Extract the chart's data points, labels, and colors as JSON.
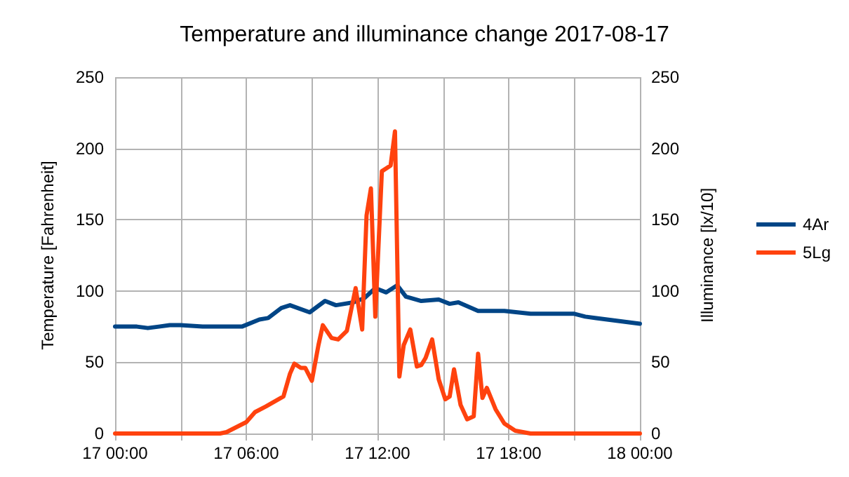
{
  "chart_data": {
    "type": "line",
    "title": "Temperature and illuminance change 2017-08-17",
    "ylabel": "Temperature [Fahrenheit]",
    "y2label": "Illuminance [lx/10]",
    "xlim": [
      "2017-08-17T00:00",
      "2017-08-18T00:00"
    ],
    "xticks": [
      {
        "value": "2017-08-17T00:00",
        "label": "17 00:00"
      },
      {
        "value": "2017-08-17T03:00",
        "label": null
      },
      {
        "value": "2017-08-17T06:00",
        "label": "17 06:00"
      },
      {
        "value": "2017-08-17T09:00",
        "label": null
      },
      {
        "value": "2017-08-17T12:00",
        "label": "17 12:00"
      },
      {
        "value": "2017-08-17T15:00",
        "label": null
      },
      {
        "value": "2017-08-17T18:00",
        "label": "17 18:00"
      },
      {
        "value": "2017-08-17T21:00",
        "label": null
      },
      {
        "value": "2017-08-18T00:00",
        "label": "18 00:00"
      }
    ],
    "ylim": [
      0,
      250
    ],
    "yticks": [
      0,
      50,
      100,
      150,
      200,
      250
    ],
    "y2lim": [
      0,
      250
    ],
    "y2ticks": [
      0,
      50,
      100,
      150,
      200,
      250
    ],
    "grid": true,
    "legend": "right",
    "marker": "none",
    "line_style": "solid",
    "series": [
      {
        "name": "4Ar",
        "color": "#004586",
        "x": [
          "2017-08-17T00:00",
          "2017-08-17T01:00",
          "2017-08-17T01:30",
          "2017-08-17T02:00",
          "2017-08-17T02:30",
          "2017-08-17T03:00",
          "2017-08-17T04:00",
          "2017-08-17T05:00",
          "2017-08-17T05:48",
          "2017-08-17T06:36",
          "2017-08-17T07:00",
          "2017-08-17T07:36",
          "2017-08-17T08:00",
          "2017-08-17T08:54",
          "2017-08-17T09:36",
          "2017-08-17T10:06",
          "2017-08-17T10:54",
          "2017-08-17T11:24",
          "2017-08-17T11:54",
          "2017-08-17T12:24",
          "2017-08-17T12:54",
          "2017-08-17T13:18",
          "2017-08-17T14:00",
          "2017-08-17T14:48",
          "2017-08-17T15:18",
          "2017-08-17T15:42",
          "2017-08-17T16:36",
          "2017-08-17T17:48",
          "2017-08-17T19:00",
          "2017-08-17T20:00",
          "2017-08-17T21:00",
          "2017-08-17T21:30",
          "2017-08-17T22:00",
          "2017-08-17T23:00",
          "2017-08-18T00:00"
        ],
        "values": [
          75,
          75,
          74,
          75,
          76,
          76,
          75,
          75,
          75,
          80,
          81,
          88,
          90,
          85,
          93,
          90,
          92,
          95,
          102,
          99,
          104,
          96,
          93,
          94,
          91,
          92,
          86,
          86,
          84,
          84,
          84,
          82,
          81,
          79,
          77
        ]
      },
      {
        "name": "5Lg",
        "color": "#ff420e",
        "axis": "y2",
        "x": [
          "2017-08-17T00:00",
          "2017-08-17T04:48",
          "2017-08-17T05:06",
          "2017-08-17T06:00",
          "2017-08-17T06:24",
          "2017-08-17T06:54",
          "2017-08-17T07:42",
          "2017-08-17T08:00",
          "2017-08-17T08:12",
          "2017-08-17T08:30",
          "2017-08-17T08:42",
          "2017-08-17T09:00",
          "2017-08-17T09:18",
          "2017-08-17T09:30",
          "2017-08-17T09:54",
          "2017-08-17T10:12",
          "2017-08-17T10:36",
          "2017-08-17T11:00",
          "2017-08-17T11:18",
          "2017-08-17T11:30",
          "2017-08-17T11:42",
          "2017-08-17T11:54",
          "2017-08-17T12:12",
          "2017-08-17T12:36",
          "2017-08-17T12:48",
          "2017-08-17T13:00",
          "2017-08-17T13:12",
          "2017-08-17T13:30",
          "2017-08-17T13:48",
          "2017-08-17T14:00",
          "2017-08-17T14:12",
          "2017-08-17T14:30",
          "2017-08-17T14:48",
          "2017-08-17T15:06",
          "2017-08-17T15:18",
          "2017-08-17T15:30",
          "2017-08-17T15:48",
          "2017-08-17T16:06",
          "2017-08-17T16:24",
          "2017-08-17T16:36",
          "2017-08-17T16:48",
          "2017-08-17T17:00",
          "2017-08-17T17:24",
          "2017-08-17T17:48",
          "2017-08-17T18:18",
          "2017-08-17T19:00",
          "2017-08-18T00:00"
        ],
        "values": [
          0,
          0,
          1,
          8,
          15,
          19,
          26,
          42,
          49,
          46,
          46,
          37,
          62,
          76,
          67,
          66,
          72,
          102,
          73,
          153,
          172,
          82,
          184,
          188,
          212,
          40,
          62,
          73,
          47,
          48,
          53,
          66,
          38,
          24,
          26,
          45,
          20,
          10,
          12,
          56,
          25,
          32,
          17,
          7,
          2,
          0,
          0
        ]
      }
    ]
  }
}
